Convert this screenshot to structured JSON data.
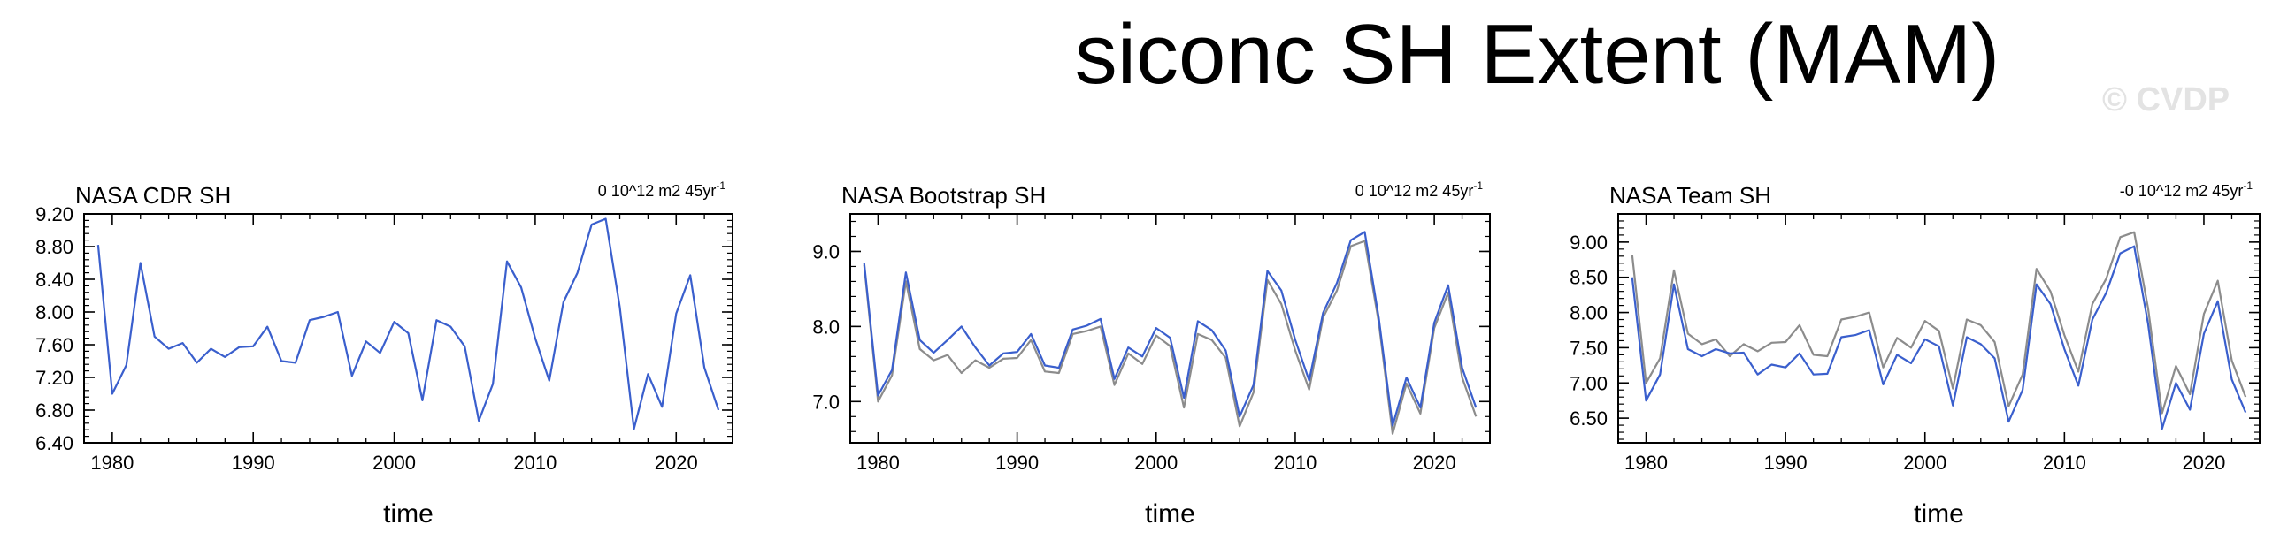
{
  "title": "siconc SH Extent (MAM)",
  "watermark": "© CVDP",
  "colors": {
    "primary_series": "#3a5fcd",
    "reference_series": "#8c8c8c",
    "frame": "#000000"
  },
  "chart_data": [
    {
      "type": "line",
      "title": "NASA CDR SH",
      "trend_label": "0 10^12 m2 45yr",
      "trend_superscript": "-1",
      "xlabel": "time",
      "ylabel": "",
      "xlim": [
        1978,
        2024
      ],
      "ylim": [
        6.4,
        9.2
      ],
      "xticks": [
        1980,
        1990,
        2000,
        2010,
        2020
      ],
      "xtick_labels": [
        "1980",
        "1990",
        "2000",
        "2010",
        "2020"
      ],
      "yticks": [
        6.4,
        6.8,
        7.2,
        7.6,
        8.0,
        8.4,
        8.8,
        9.2
      ],
      "ytick_labels": [
        "6.40",
        "6.80",
        "7.20",
        "7.60",
        "8.00",
        "8.40",
        "8.80",
        "9.20"
      ],
      "x": [
        1979,
        1980,
        1981,
        1982,
        1983,
        1984,
        1985,
        1986,
        1987,
        1988,
        1989,
        1990,
        1991,
        1992,
        1993,
        1994,
        1995,
        1996,
        1997,
        1998,
        1999,
        2000,
        2001,
        2002,
        2003,
        2004,
        2005,
        2006,
        2007,
        2008,
        2009,
        2010,
        2011,
        2012,
        2013,
        2014,
        2015,
        2016,
        2017,
        2018,
        2019,
        2020,
        2021,
        2022,
        2023
      ],
      "series": [
        {
          "role": "primary",
          "values": [
            8.82,
            7.0,
            7.35,
            8.6,
            7.7,
            7.55,
            7.62,
            7.38,
            7.55,
            7.45,
            7.57,
            7.58,
            7.82,
            7.4,
            7.38,
            7.9,
            7.94,
            8.0,
            7.22,
            7.64,
            7.5,
            7.88,
            7.74,
            6.92,
            7.9,
            7.82,
            7.58,
            6.67,
            7.12,
            8.62,
            8.3,
            7.68,
            7.16,
            8.12,
            8.48,
            9.07,
            9.14,
            8.06,
            6.57,
            7.24,
            6.84,
            7.98,
            8.45,
            7.32,
            6.8
          ]
        }
      ]
    },
    {
      "type": "line",
      "title": "NASA Bootstrap SH",
      "trend_label": "0 10^12 m2 45yr",
      "trend_superscript": "-1",
      "xlabel": "time",
      "ylabel": "",
      "xlim": [
        1978,
        2024
      ],
      "ylim": [
        6.45,
        9.5
      ],
      "xticks": [
        1980,
        1990,
        2000,
        2010,
        2020
      ],
      "xtick_labels": [
        "1980",
        "1990",
        "2000",
        "2010",
        "2020"
      ],
      "yticks": [
        7.0,
        8.0,
        9.0
      ],
      "ytick_labels": [
        "7.0",
        "8.0",
        "9.0"
      ],
      "x": [
        1979,
        1980,
        1981,
        1982,
        1983,
        1984,
        1985,
        1986,
        1987,
        1988,
        1989,
        1990,
        1991,
        1992,
        1993,
        1994,
        1995,
        1996,
        1997,
        1998,
        1999,
        2000,
        2001,
        2002,
        2003,
        2004,
        2005,
        2006,
        2007,
        2008,
        2009,
        2010,
        2011,
        2012,
        2013,
        2014,
        2015,
        2016,
        2017,
        2018,
        2019,
        2020,
        2021,
        2022,
        2023
      ],
      "series": [
        {
          "role": "reference",
          "values": [
            8.82,
            7.0,
            7.35,
            8.6,
            7.7,
            7.55,
            7.62,
            7.38,
            7.55,
            7.45,
            7.57,
            7.58,
            7.82,
            7.4,
            7.38,
            7.9,
            7.94,
            8.0,
            7.22,
            7.64,
            7.5,
            7.88,
            7.74,
            6.92,
            7.9,
            7.82,
            7.58,
            6.67,
            7.12,
            8.62,
            8.3,
            7.68,
            7.16,
            8.12,
            8.48,
            9.07,
            9.14,
            8.06,
            6.57,
            7.24,
            6.84,
            7.98,
            8.45,
            7.32,
            6.8
          ]
        },
        {
          "role": "primary",
          "values": [
            8.85,
            7.08,
            7.42,
            8.72,
            7.82,
            7.65,
            7.82,
            8.0,
            7.72,
            7.48,
            7.64,
            7.66,
            7.9,
            7.48,
            7.45,
            7.96,
            8.01,
            8.1,
            7.3,
            7.72,
            7.6,
            7.98,
            7.85,
            7.05,
            8.07,
            7.95,
            7.68,
            6.8,
            7.22,
            8.74,
            8.48,
            7.82,
            7.28,
            8.18,
            8.58,
            9.15,
            9.26,
            8.12,
            6.68,
            7.32,
            6.92,
            8.05,
            8.55,
            7.45,
            6.92
          ]
        }
      ]
    },
    {
      "type": "line",
      "title": "NASA Team SH",
      "trend_label": "-0 10^12 m2 45yr",
      "trend_superscript": "-1",
      "xlabel": "time",
      "ylabel": "",
      "xlim": [
        1978,
        2024
      ],
      "ylim": [
        6.15,
        9.4
      ],
      "xticks": [
        1980,
        1990,
        2000,
        2010,
        2020
      ],
      "xtick_labels": [
        "1980",
        "1990",
        "2000",
        "2010",
        "2020"
      ],
      "yticks": [
        6.5,
        7.0,
        7.5,
        8.0,
        8.5,
        9.0
      ],
      "ytick_labels": [
        "6.50",
        "7.00",
        "7.50",
        "8.00",
        "8.50",
        "9.00"
      ],
      "x": [
        1979,
        1980,
        1981,
        1982,
        1983,
        1984,
        1985,
        1986,
        1987,
        1988,
        1989,
        1990,
        1991,
        1992,
        1993,
        1994,
        1995,
        1996,
        1997,
        1998,
        1999,
        2000,
        2001,
        2002,
        2003,
        2004,
        2005,
        2006,
        2007,
        2008,
        2009,
        2010,
        2011,
        2012,
        2013,
        2014,
        2015,
        2016,
        2017,
        2018,
        2019,
        2020,
        2021,
        2022,
        2023
      ],
      "series": [
        {
          "role": "reference",
          "values": [
            8.82,
            7.0,
            7.35,
            8.6,
            7.7,
            7.55,
            7.62,
            7.38,
            7.55,
            7.45,
            7.57,
            7.58,
            7.82,
            7.4,
            7.38,
            7.9,
            7.94,
            8.0,
            7.22,
            7.64,
            7.5,
            7.88,
            7.74,
            6.92,
            7.9,
            7.82,
            7.58,
            6.67,
            7.12,
            8.62,
            8.3,
            7.68,
            7.16,
            8.12,
            8.48,
            9.07,
            9.14,
            8.06,
            6.57,
            7.24,
            6.84,
            7.98,
            8.45,
            7.32,
            6.8
          ]
        },
        {
          "role": "primary",
          "values": [
            8.5,
            6.75,
            7.12,
            8.4,
            7.48,
            7.38,
            7.48,
            7.42,
            7.43,
            7.12,
            7.26,
            7.22,
            7.42,
            7.12,
            7.13,
            7.65,
            7.68,
            7.75,
            6.98,
            7.4,
            7.28,
            7.62,
            7.52,
            6.68,
            7.65,
            7.55,
            7.35,
            6.45,
            6.9,
            8.4,
            8.12,
            7.48,
            6.96,
            7.9,
            8.28,
            8.84,
            8.94,
            7.84,
            6.35,
            7.0,
            6.62,
            7.7,
            8.16,
            7.05,
            6.58
          ]
        }
      ]
    }
  ]
}
